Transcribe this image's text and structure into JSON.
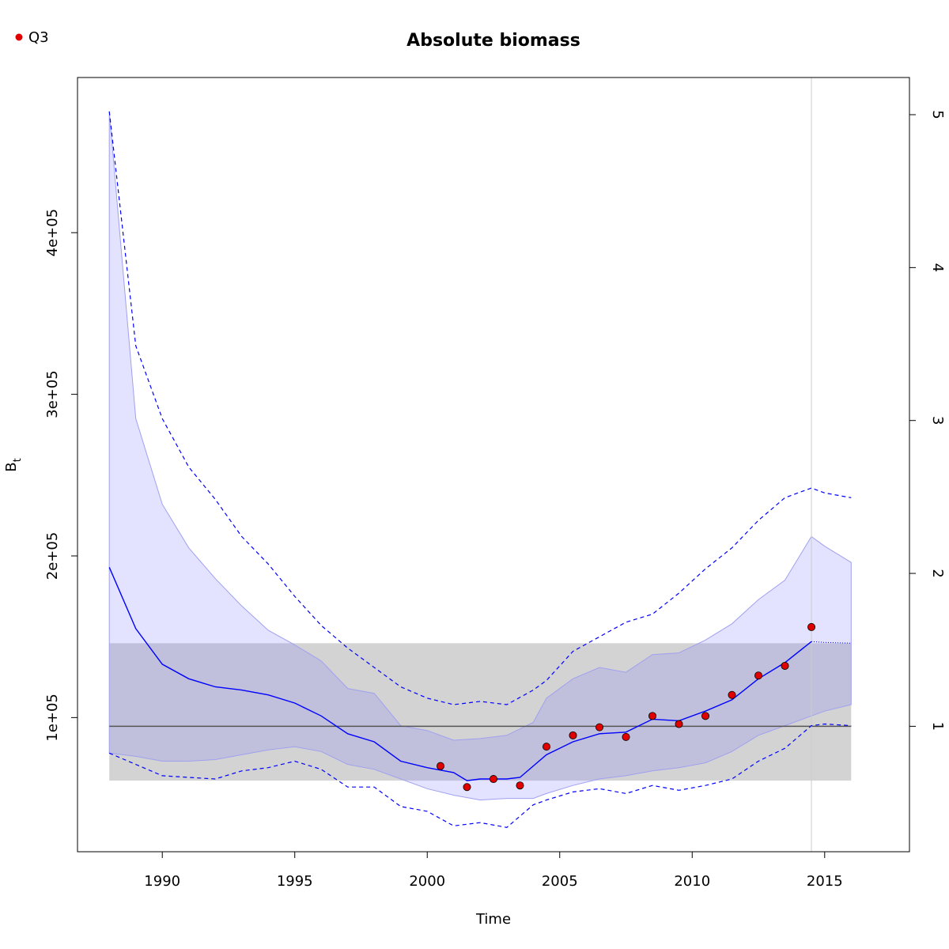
{
  "chart_data": {
    "type": "line",
    "title": "Absolute biomass",
    "xlabel": "Time",
    "ylabel": "B",
    "ylabel_subscript": "t",
    "xlim": [
      1986.8,
      2018.2
    ],
    "ylim": [
      17000,
      496000
    ],
    "x_ticks": [
      1990,
      1995,
      2000,
      2005,
      2010,
      2015
    ],
    "y_ticks": [
      {
        "value": 100000,
        "label": "1e+05"
      },
      {
        "value": 200000,
        "label": "2e+05"
      },
      {
        "value": 300000,
        "label": "3e+05"
      },
      {
        "value": 400000,
        "label": "4e+05"
      }
    ],
    "right_axis_unit": 94600,
    "right_ticks": [
      {
        "value": 1,
        "label": "1"
      },
      {
        "value": 2,
        "label": "2"
      },
      {
        "value": 3,
        "label": "3"
      },
      {
        "value": 4,
        "label": "4"
      },
      {
        "value": 5,
        "label": "5"
      }
    ],
    "legend": [
      {
        "label": "Q3",
        "color": "#e00000"
      }
    ],
    "reference_band": {
      "x": [
        1988,
        2016
      ],
      "y": [
        61000,
        146000
      ],
      "color": "#d3d3d3"
    },
    "reference_line": {
      "y": 94600,
      "x": [
        1988,
        2016
      ],
      "color": "#555555"
    },
    "vertical_line": {
      "x": 2014.5,
      "color": "#cccccc"
    },
    "estimate": {
      "color": "#0000ff",
      "x": [
        1988,
        1989,
        1990,
        1991,
        1992,
        1993,
        1994,
        1995,
        1996,
        1997,
        1998,
        1999,
        2000,
        2001,
        2001.5,
        2002,
        2003,
        2003.5,
        2004.5,
        2005.5,
        2006.5,
        2007.5,
        2008.5,
        2009.5,
        2010.5,
        2011.5,
        2012.5,
        2013.5,
        2014.5
      ],
      "y": [
        193000,
        155000,
        133000,
        124000,
        119000,
        117000,
        114000,
        109000,
        101000,
        90000,
        85000,
        73000,
        69000,
        66000,
        61000,
        62000,
        62000,
        63000,
        77000,
        85000,
        90000,
        91000,
        99000,
        98000,
        104000,
        111000,
        124000,
        134000,
        147000
      ]
    },
    "estimate_forecast": {
      "x": [
        2014.5,
        2015,
        2016
      ],
      "y": [
        147000,
        146500,
        146000
      ]
    },
    "ci_inner": {
      "color": "#e0e0ff",
      "x": [
        1988,
        1989,
        1990,
        1991,
        1992,
        1993,
        1994,
        1995,
        1996,
        1997,
        1998,
        1999,
        2000,
        2001,
        2002,
        2003,
        2004,
        2004.5,
        2005.5,
        2006.5,
        2007.5,
        2008.5,
        2009.5,
        2010.5,
        2011.5,
        2012.5,
        2013.5,
        2014.5,
        2015,
        2016
      ],
      "upper": [
        475000,
        285000,
        232000,
        205000,
        186000,
        169000,
        154000,
        145000,
        135000,
        118000,
        115000,
        95000,
        92000,
        86000,
        87000,
        89000,
        97000,
        112000,
        124000,
        131000,
        128000,
        139000,
        140000,
        148000,
        158000,
        173000,
        185000,
        212000,
        206000,
        196000
      ],
      "lower": [
        78000,
        76000,
        73000,
        73000,
        74000,
        77000,
        80000,
        82000,
        79000,
        71000,
        68000,
        62000,
        56000,
        52000,
        49000,
        50000,
        50000,
        53000,
        58000,
        62000,
        64000,
        67000,
        69000,
        72000,
        79000,
        89000,
        95000,
        101000,
        104000,
        108000
      ]
    },
    "ci_outer": {
      "style": "dashed",
      "color": "#0000ff",
      "x": [
        1988,
        1989,
        1990,
        1991,
        1992,
        1993,
        1994,
        1995,
        1996,
        1997,
        1998,
        1999,
        2000,
        2001,
        2002,
        2003,
        2004,
        2004.5,
        2005.5,
        2006.5,
        2007.5,
        2008.5,
        2009.5,
        2010.5,
        2011.5,
        2012.5,
        2013.5,
        2014.5,
        2015,
        2016
      ],
      "upper": [
        475000,
        330000,
        285000,
        255000,
        235000,
        212000,
        195000,
        175000,
        157000,
        143000,
        131000,
        119000,
        112000,
        108000,
        110000,
        108000,
        117000,
        123000,
        141000,
        150000,
        159000,
        164000,
        177000,
        192000,
        205000,
        222000,
        236000,
        242000,
        239000,
        236000
      ],
      "lower": [
        78000,
        71000,
        64000,
        63000,
        62000,
        67000,
        69000,
        73000,
        68000,
        57000,
        57000,
        45000,
        42000,
        33000,
        35000,
        32000,
        46000,
        49000,
        54000,
        56000,
        53000,
        58000,
        55000,
        58000,
        62000,
        73000,
        81000,
        95000,
        96000,
        95000
      ]
    },
    "observations": {
      "series": "Q3",
      "x": [
        2000.5,
        2001.5,
        2002.5,
        2003.5,
        2004.5,
        2005.5,
        2006.5,
        2007.5,
        2008.5,
        2009.5,
        2010.5,
        2011.5,
        2012.5,
        2013.5,
        2014.5
      ],
      "y": [
        70000,
        57000,
        62000,
        58000,
        82000,
        89000,
        94000,
        88000,
        101000,
        96000,
        101000,
        114000,
        126000,
        132000,
        156000
      ]
    }
  }
}
